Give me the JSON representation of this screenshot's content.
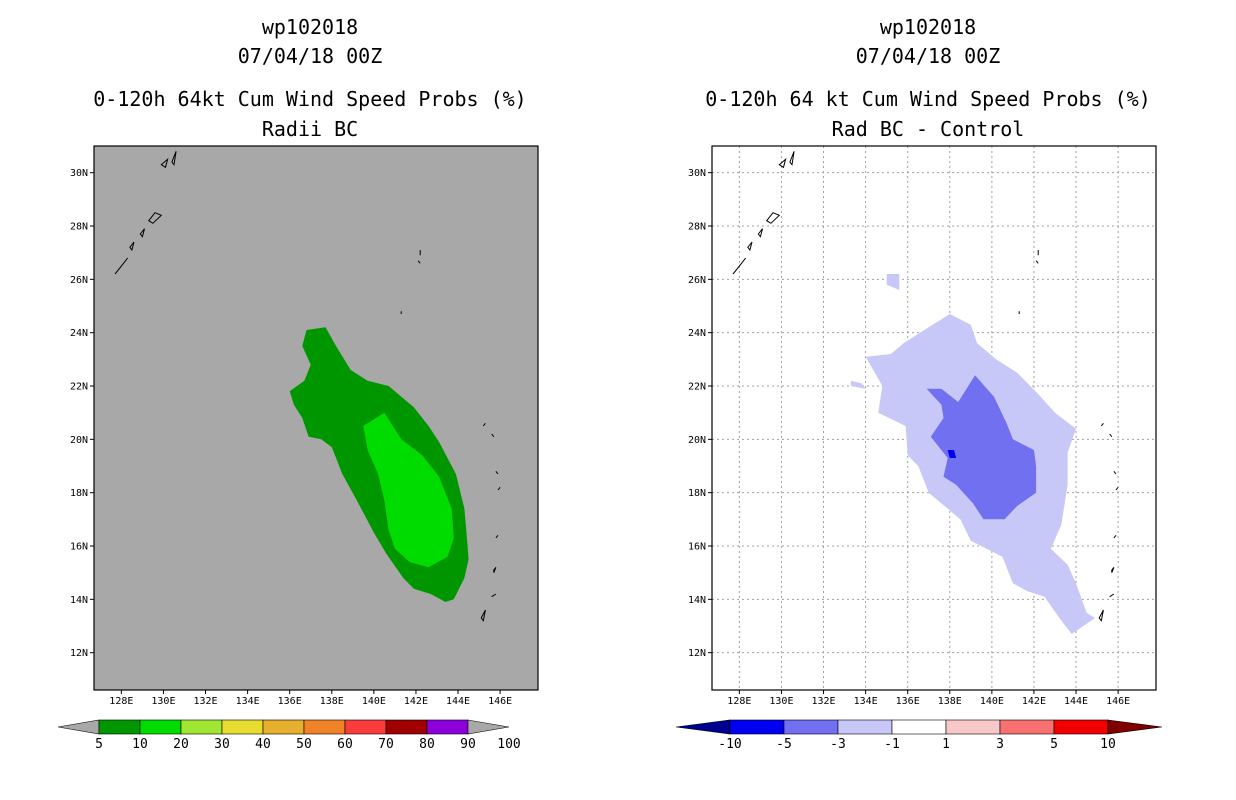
{
  "chart_data": [
    {
      "type": "contour-map",
      "title_lines": [
        "wp102018",
        "07/04/18 00Z",
        "0-120h 64kt Cum Wind Speed Probs (%)",
        "Radii BC"
      ],
      "x_ticks": [
        "128E",
        "130E",
        "132E",
        "134E",
        "136E",
        "138E",
        "140E",
        "142E",
        "144E",
        "146E"
      ],
      "y_ticks": [
        "12N",
        "14N",
        "16N",
        "18N",
        "20N",
        "22N",
        "24N",
        "26N",
        "28N",
        "30N"
      ],
      "xlim_deg_e": [
        126.7,
        147.8
      ],
      "ylim_deg_n": [
        10.6,
        31.0
      ],
      "gridlines": false,
      "background_color": "#a8a8a8",
      "colorbar": {
        "levels": [
          "5",
          "10",
          "20",
          "30",
          "40",
          "50",
          "60",
          "70",
          "80",
          "90",
          "100"
        ],
        "colors": [
          "#009600",
          "#00dc00",
          "#a0e632",
          "#e6dc32",
          "#e6af2d",
          "#f08228",
          "#fa3c3c",
          "#a00000",
          "#8c00dc"
        ],
        "under_color": "#a8a8a8",
        "over_color": "#a8a8a8"
      },
      "contours": [
        {
          "range": "5-10",
          "color": "#009600",
          "polygon": [
            [
              136.0,
              21.8
            ],
            [
              136.7,
              22.2
            ],
            [
              137.0,
              22.8
            ],
            [
              136.6,
              23.5
            ],
            [
              136.8,
              24.1
            ],
            [
              137.7,
              24.2
            ],
            [
              138.2,
              23.5
            ],
            [
              138.9,
              22.6
            ],
            [
              139.7,
              22.2
            ],
            [
              140.7,
              22.0
            ],
            [
              141.9,
              21.2
            ],
            [
              142.6,
              20.5
            ],
            [
              143.1,
              19.9
            ],
            [
              143.9,
              18.7
            ],
            [
              144.3,
              17.4
            ],
            [
              144.4,
              16.5
            ],
            [
              144.5,
              15.5
            ],
            [
              144.3,
              14.8
            ],
            [
              143.8,
              14.0
            ],
            [
              143.4,
              13.9
            ],
            [
              142.7,
              14.2
            ],
            [
              141.9,
              14.4
            ],
            [
              141.4,
              14.8
            ],
            [
              140.6,
              15.7
            ],
            [
              140.0,
              16.5
            ],
            [
              139.2,
              17.7
            ],
            [
              138.5,
              18.7
            ],
            [
              138.0,
              19.7
            ],
            [
              137.5,
              20.0
            ],
            [
              136.9,
              20.1
            ],
            [
              136.6,
              20.8
            ],
            [
              136.2,
              21.3
            ]
          ]
        },
        {
          "range": "10-20",
          "color": "#00dc00",
          "polygon": [
            [
              139.5,
              20.5
            ],
            [
              140.5,
              21.0
            ],
            [
              141.3,
              20.0
            ],
            [
              142.3,
              19.4
            ],
            [
              143.1,
              18.6
            ],
            [
              143.7,
              17.4
            ],
            [
              143.8,
              16.3
            ],
            [
              143.5,
              15.6
            ],
            [
              142.6,
              15.2
            ],
            [
              141.7,
              15.4
            ],
            [
              141.0,
              15.9
            ],
            [
              140.7,
              16.6
            ],
            [
              140.5,
              17.7
            ],
            [
              140.2,
              18.7
            ],
            [
              139.7,
              19.6
            ]
          ]
        }
      ]
    },
    {
      "type": "contour-map",
      "title_lines": [
        "wp102018",
        "07/04/18 00Z",
        "0-120h 64 kt Cum Wind Speed Probs (%)",
        "Rad BC - Control"
      ],
      "x_ticks": [
        "128E",
        "130E",
        "132E",
        "134E",
        "136E",
        "138E",
        "140E",
        "142E",
        "144E",
        "146E"
      ],
      "y_ticks": [
        "12N",
        "14N",
        "16N",
        "18N",
        "20N",
        "22N",
        "24N",
        "26N",
        "28N",
        "30N"
      ],
      "xlim_deg_e": [
        126.7,
        147.8
      ],
      "ylim_deg_n": [
        10.6,
        31.0
      ],
      "gridlines": true,
      "background_color": "#ffffff",
      "colorbar": {
        "levels": [
          "-10",
          "-5",
          "-3",
          "-1",
          "1",
          "3",
          "5",
          "10"
        ],
        "colors": [
          "#0000f0",
          "#7070f0",
          "#c8c8f8",
          "#ffffff",
          "#f8c8c8",
          "#f87070",
          "#f00000"
        ],
        "under_color": "#000090",
        "over_color": "#800000"
      },
      "contours": [
        {
          "range": "-3 to -1",
          "color": "#c8c8f8",
          "polygon": [
            [
              134.0,
              23.1
            ],
            [
              135.2,
              23.2
            ],
            [
              135.8,
              23.6
            ],
            [
              137.0,
              24.2
            ],
            [
              138.0,
              24.7
            ],
            [
              139.0,
              24.3
            ],
            [
              139.3,
              23.6
            ],
            [
              140.2,
              23.0
            ],
            [
              141.2,
              22.5
            ],
            [
              142.2,
              21.7
            ],
            [
              143.0,
              21.0
            ],
            [
              144.0,
              20.4
            ],
            [
              143.6,
              19.5
            ],
            [
              143.6,
              18.3
            ],
            [
              143.3,
              16.8
            ],
            [
              142.8,
              15.9
            ],
            [
              143.6,
              15.3
            ],
            [
              144.0,
              14.6
            ],
            [
              144.5,
              13.5
            ],
            [
              144.9,
              13.3
            ],
            [
              143.8,
              12.7
            ],
            [
              143.3,
              13.2
            ],
            [
              142.5,
              14.1
            ],
            [
              141.7,
              14.3
            ],
            [
              141.0,
              14.6
            ],
            [
              140.5,
              15.6
            ],
            [
              139.0,
              16.2
            ],
            [
              138.5,
              17.0
            ],
            [
              137.0,
              18.0
            ],
            [
              136.5,
              19.0
            ],
            [
              136.0,
              19.4
            ],
            [
              135.9,
              20.5
            ],
            [
              134.6,
              21.0
            ],
            [
              134.8,
              22.0
            ]
          ]
        },
        {
          "range": "-5 to -3",
          "color": "#7070f0",
          "polygon": [
            [
              136.9,
              21.9
            ],
            [
              137.6,
              21.9
            ],
            [
              138.4,
              21.4
            ],
            [
              139.2,
              22.4
            ],
            [
              140.1,
              21.6
            ],
            [
              140.7,
              20.6
            ],
            [
              141.0,
              20.0
            ],
            [
              142.0,
              19.6
            ],
            [
              142.1,
              19.0
            ],
            [
              142.1,
              18.0
            ],
            [
              141.2,
              17.5
            ],
            [
              140.6,
              17.0
            ],
            [
              139.6,
              17.0
            ],
            [
              139.1,
              17.6
            ],
            [
              138.3,
              18.3
            ],
            [
              137.7,
              18.6
            ],
            [
              137.9,
              19.3
            ],
            [
              137.1,
              20.1
            ],
            [
              137.7,
              20.8
            ],
            [
              137.6,
              21.3
            ]
          ]
        },
        {
          "range": "-10 to -5",
          "color": "#0000f0",
          "polygon": [
            [
              137.9,
              19.6
            ],
            [
              138.2,
              19.6
            ],
            [
              138.3,
              19.3
            ],
            [
              138.0,
              19.3
            ]
          ]
        },
        {
          "range": "-3 to -1",
          "color": "#c8c8f8",
          "polygon": [
            [
              133.3,
              22.2
            ],
            [
              133.8,
              22.1
            ],
            [
              134.0,
              21.9
            ],
            [
              133.3,
              22.0
            ]
          ]
        },
        {
          "range": "-3 to -1",
          "color": "#c8c8f8",
          "polygon": [
            [
              135.0,
              26.2
            ],
            [
              135.6,
              26.2
            ],
            [
              135.6,
              25.6
            ],
            [
              135.0,
              25.8
            ]
          ]
        }
      ]
    }
  ]
}
